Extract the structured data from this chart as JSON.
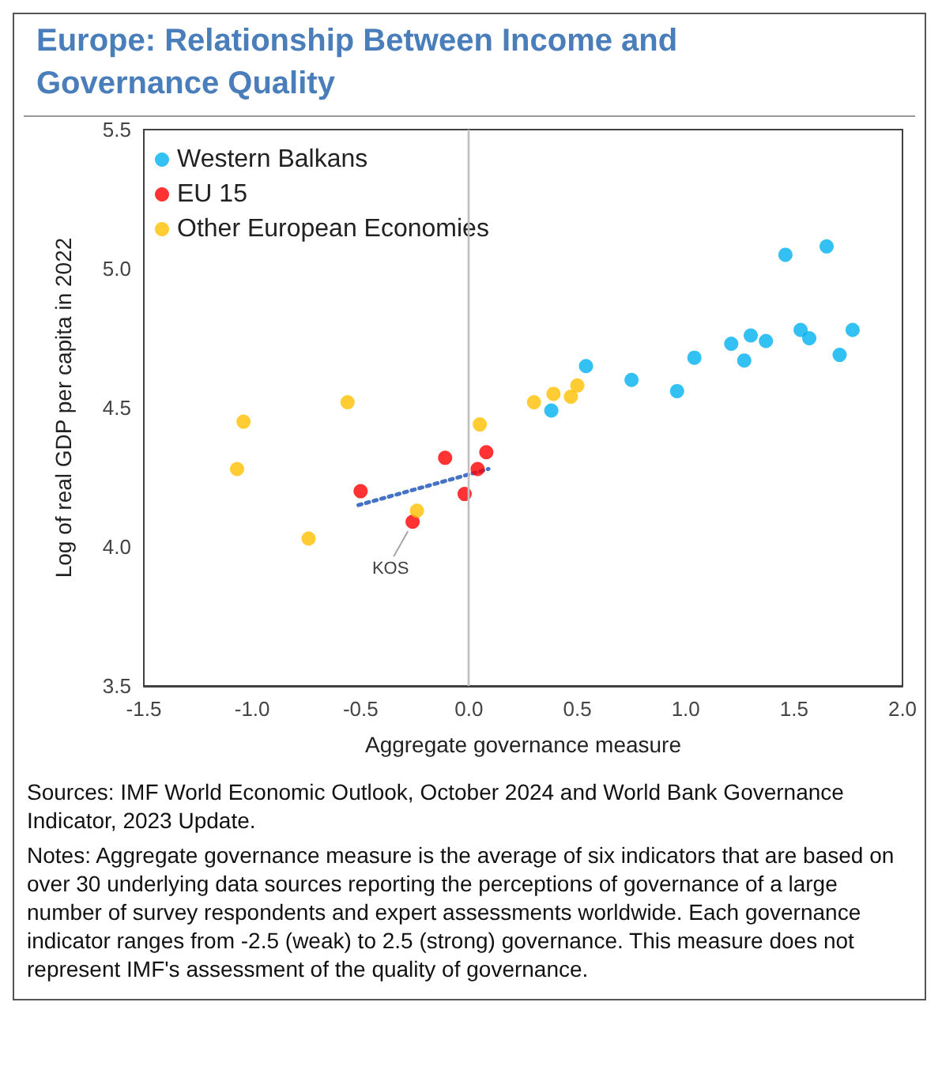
{
  "chart_data": {
    "type": "scatter",
    "title": "Europe: Relationship Between Income and Governance Quality",
    "xlabel": "Aggregate governance measure",
    "ylabel": "Log of real GDP per capita in 2022",
    "series": [
      {
        "name": "Western Balkans",
        "color": "#00b0f0",
        "x": [
          0.38,
          0.54,
          0.75,
          0.96,
          1.04,
          1.21,
          1.27,
          1.3,
          1.37,
          1.46,
          1.65,
          1.53,
          1.57,
          1.71,
          1.77
        ],
        "values": [
          4.49,
          4.65,
          4.6,
          4.56,
          4.68,
          4.73,
          4.67,
          4.76,
          4.74,
          5.05,
          5.08,
          4.78,
          4.75,
          4.69,
          4.78
        ]
      },
      {
        "name": "EU 15",
        "color": "#ff0000",
        "x": [
          -0.5,
          -0.11,
          0.04,
          0.08,
          -0.02,
          -0.26
        ],
        "values": [
          4.2,
          4.32,
          4.28,
          4.34,
          4.19,
          4.09
        ]
      },
      {
        "name": "Other European Economies",
        "color": "#ffc000",
        "x": [
          -1.04,
          -0.56,
          -1.07,
          -0.74,
          0.05,
          -0.24,
          0.3,
          0.39,
          0.47,
          0.5
        ],
        "values": [
          4.45,
          4.52,
          4.28,
          4.03,
          4.44,
          4.13,
          4.52,
          4.55,
          4.54,
          4.58
        ]
      },
      {
        "type": "line",
        "color": "#4472c4",
        "line_style": "dotted",
        "marker": "none",
        "x": [
          -0.51,
          0.09
        ],
        "values": [
          4.15,
          4.28
        ]
      }
    ],
    "xlim": [
      -1.5,
      2.0
    ],
    "xticks": [
      -1.5,
      {
        "value": -1,
        "label": "-1.0"
      },
      -0.5,
      {
        "value": 0,
        "label": "0.0"
      },
      0.5,
      {
        "value": 1,
        "label": "1.0"
      },
      1.5,
      {
        "value": 2,
        "label": "2.0"
      }
    ],
    "ylim": [
      3.5,
      5.5
    ],
    "yticks": [
      3.5,
      {
        "value": 4,
        "label": "4.0"
      },
      4.5,
      {
        "value": 5,
        "label": "5.0"
      },
      5.5
    ],
    "ref_lines": [
      {
        "axis": "x",
        "value": 0,
        "color": "#bfbfbf"
      }
    ],
    "grid": false,
    "legend": "top left",
    "marker": "circle",
    "annotations": [
      {
        "text": "KOS",
        "x": -0.26,
        "y": 4.09
      },
      "Sources: IMF World Economic Outlook, October 2024 and World Bank Governance Indicator, 2023 Update.",
      "Notes: Aggregate governance measure is the average of six indicators that are based on  over 30 underlying data sources reporting the perceptions of governance of a large number of survey  respondents and expert assessments worldwide. Each governance indicator ranges from -2.5 (weak) to 2.5 (strong) governance. This measure does not represent IMF's assessment of the quality of governance."
    ]
  }
}
